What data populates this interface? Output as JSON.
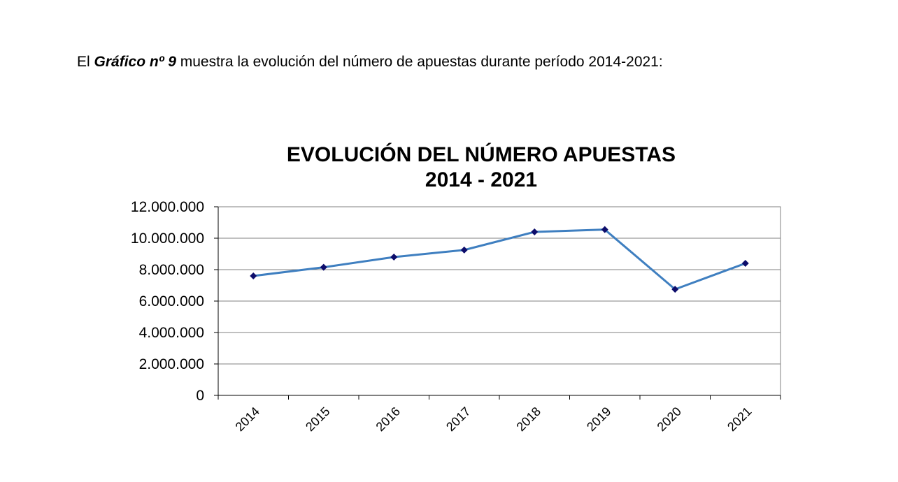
{
  "intro": {
    "prefix": "El ",
    "emphasis": "Gráfico nº 9",
    "suffix": " muestra la evolución del número de apuestas durante período 2014-2021:"
  },
  "chart_data": {
    "type": "line",
    "title": "EVOLUCIÓN DEL NÚMERO APUESTAS",
    "subtitle": "2014 - 2021",
    "xlabel": "",
    "ylabel": "",
    "categories": [
      "2014",
      "2015",
      "2016",
      "2017",
      "2018",
      "2019",
      "2020",
      "2021"
    ],
    "series": [
      {
        "values": [
          7600000,
          8150000,
          8800000,
          9250000,
          10400000,
          10550000,
          6750000,
          8400000
        ]
      }
    ],
    "ylim": [
      0,
      12000000
    ],
    "yticks": [
      {
        "value": 0,
        "label": "0"
      },
      {
        "value": 2000000,
        "label": "2.000.000"
      },
      {
        "value": 4000000,
        "label": "4.000.000"
      },
      {
        "value": 6000000,
        "label": "6.000.000"
      },
      {
        "value": 8000000,
        "label": "8.000.000"
      },
      {
        "value": 10000000,
        "label": "10.000.000"
      },
      {
        "value": 12000000,
        "label": "12.000.000"
      }
    ],
    "grid": true,
    "legend": "none",
    "line_color": "#3f7fc0",
    "marker_color": "#0d0d6b",
    "grid_color": "#808080"
  }
}
